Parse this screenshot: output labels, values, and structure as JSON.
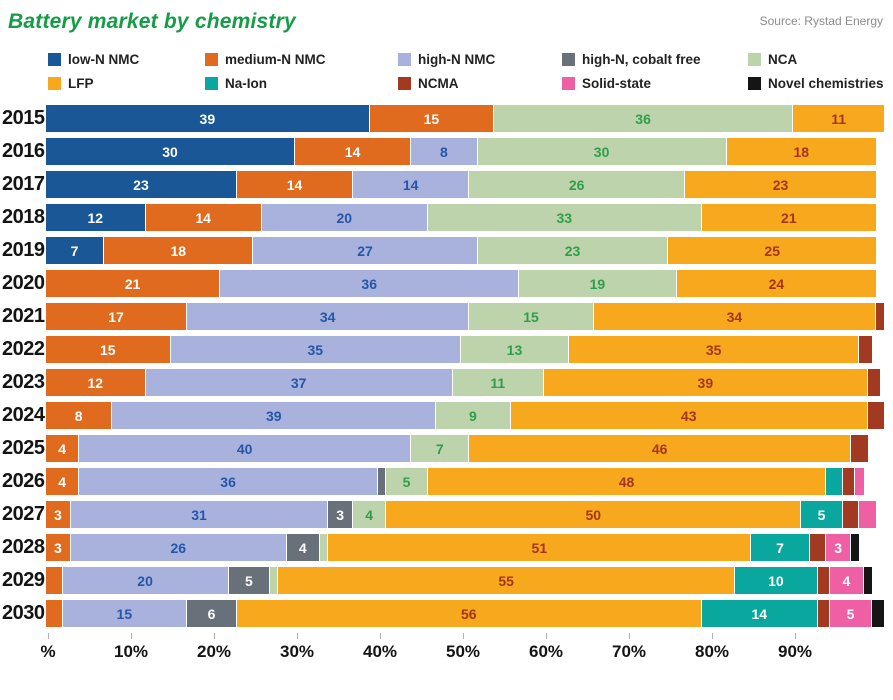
{
  "header": {
    "title": "Battery market by chemistry",
    "source": "Source: Rystad Energy"
  },
  "chart_data": {
    "type": "bar",
    "stacked": true,
    "orientation": "horizontal",
    "unit": "percent",
    "title": "Battery market by chemistry",
    "source": "Source: Rystad Energy",
    "legend_position": "top",
    "grid": false,
    "label_threshold": 3,
    "categories": [
      "2015",
      "2016",
      "2017",
      "2018",
      "2019",
      "2020",
      "2021",
      "2022",
      "2023",
      "2024",
      "2025",
      "2026",
      "2027",
      "2028",
      "2029",
      "2030"
    ],
    "x_axis": {
      "tick_values": [
        0,
        10,
        20,
        30,
        40,
        50,
        60,
        70,
        80,
        90
      ],
      "tick_labels": [
        "%",
        "10%",
        "20%",
        "30%",
        "40%",
        "50%",
        "60%",
        "70%",
        "80%",
        "90%"
      ],
      "max": 101
    },
    "series": [
      {
        "name": "low-N NMC",
        "color": "#1a5796",
        "label_color": "#ffffff",
        "values": [
          39,
          30,
          23,
          12,
          7,
          0,
          0,
          0,
          0,
          0,
          0,
          0,
          0,
          0,
          0,
          0
        ]
      },
      {
        "name": "medium-N NMC",
        "color": "#e06a1e",
        "label_color": "#ffffff",
        "values": [
          15,
          14,
          14,
          14,
          18,
          21,
          17,
          15,
          12,
          8,
          4,
          4,
          3,
          3,
          2,
          2
        ]
      },
      {
        "name": "high-N NMC",
        "color": "#a9b2dc",
        "label_color": "#2456a8",
        "values": [
          0,
          8,
          14,
          20,
          27,
          36,
          34,
          35,
          37,
          39,
          40,
          36,
          31,
          26,
          20,
          15
        ]
      },
      {
        "name": "high-N, cobalt free",
        "color": "#687179",
        "label_color": "#ffffff",
        "values": [
          0,
          0,
          0,
          0,
          0,
          0,
          0,
          0,
          0,
          0,
          0,
          1,
          3,
          4,
          5,
          6
        ]
      },
      {
        "name": "NCA",
        "color": "#bdd3ab",
        "label_color": "#2f9e4a",
        "values": [
          36,
          30,
          26,
          33,
          23,
          19,
          15,
          13,
          11,
          9,
          7,
          5,
          4,
          1,
          1,
          0
        ]
      },
      {
        "name": "LFP",
        "color": "#f7a81c",
        "label_color": "#a4361c",
        "values": [
          11,
          18,
          23,
          21,
          25,
          24,
          34,
          35,
          39,
          43,
          46,
          48,
          50,
          51,
          55,
          56
        ]
      },
      {
        "name": "Na-Ion",
        "color": "#0aa79f",
        "label_color": "#ffffff",
        "values": [
          0,
          0,
          0,
          0,
          0,
          0,
          0,
          0,
          0,
          0,
          0,
          2,
          5,
          7,
          10,
          14
        ]
      },
      {
        "name": "NCMA",
        "color": "#a23a22",
        "label_color": "#ffffff",
        "values": [
          0,
          0,
          0,
          0,
          0,
          0,
          1,
          1.5,
          1.5,
          2,
          2,
          1.5,
          2,
          2,
          1.5,
          1.5
        ]
      },
      {
        "name": "Solid-state",
        "color": "#ee5fa4",
        "label_color": "#ffffff",
        "values": [
          0,
          0,
          0,
          0,
          0,
          0,
          0,
          0,
          0,
          0,
          0,
          1,
          2,
          3,
          4,
          5
        ]
      },
      {
        "name": "Novel chemistries",
        "color": "#151515",
        "label_color": "#ffffff",
        "values": [
          0,
          0,
          0,
          0,
          0,
          0,
          0,
          0,
          0,
          0,
          0,
          0,
          0,
          1,
          1,
          1.5
        ]
      }
    ]
  }
}
